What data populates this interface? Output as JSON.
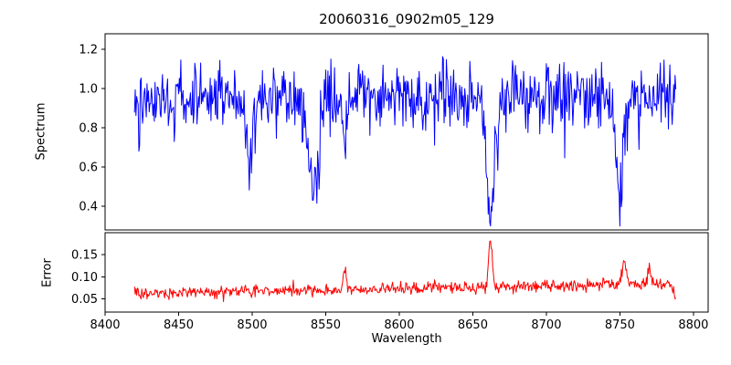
{
  "title": "20060316_0902m05_129",
  "chart_data": {
    "type": "line",
    "title": "20060316_0902m05_129",
    "xlabel": "Wavelength",
    "xlim": [
      8400,
      8810
    ],
    "xticks": [
      8400,
      8450,
      8500,
      8550,
      8600,
      8650,
      8700,
      8750,
      8800
    ],
    "xtick_labels": [
      "8400",
      "8450",
      "8500",
      "8550",
      "8600",
      "8650",
      "8700",
      "8750",
      "8800"
    ],
    "x_data_start": 8420,
    "x_data_end": 8788,
    "x_step": 0.5,
    "noise_seed": 42,
    "grid": false,
    "legend": "none",
    "panels": [
      {
        "name": "spectrum",
        "ylabel": "Spectrum",
        "color": "#0000ff",
        "ylim": [
          0.28,
          1.28
        ],
        "yticks": [
          0.4,
          0.6,
          0.8,
          1.0,
          1.2
        ],
        "ytick_labels": [
          "0.4",
          "0.6",
          "0.8",
          "1.0",
          "1.2"
        ],
        "description": "Noisy normalized stellar spectrum around continuum 1.0 with Ca II triplet absorption dips near 8498, 8542 and 8662 Angstrom plus a dip near 8750",
        "synthesis": {
          "continuum": 0.96,
          "noise_std": 0.085,
          "extra_spike_prob": 0.05,
          "extra_spike_max": 0.28,
          "clamp": [
            0.3,
            1.24
          ],
          "lines": [
            {
              "center": 8498,
              "depth": 0.22,
              "sigma": 3.0
            },
            {
              "center": 8542,
              "depth": 0.47,
              "sigma": 3.5
            },
            {
              "center": 8563,
              "depth": 0.3,
              "sigma": 1.2
            },
            {
              "center": 8662,
              "depth": 0.63,
              "sigma": 3.0
            },
            {
              "center": 8750,
              "depth": 0.48,
              "sigma": 2.5
            }
          ]
        }
      },
      {
        "name": "error",
        "ylabel": "Error",
        "color": "#ff0000",
        "ylim": [
          0.02,
          0.2
        ],
        "yticks": [
          0.05,
          0.1,
          0.15
        ],
        "ytick_labels": [
          "0.05",
          "0.10",
          "0.15"
        ],
        "description": "Error spectrum slowly rising from about 0.06 to 0.09 with a sharp spike to about 0.18 near 8662 and smaller spikes near 8563 and 8750, dropping at the red end",
        "synthesis": {
          "base_start": 0.062,
          "base_end": 0.085,
          "noise_std": 0.007,
          "clamp": [
            0.03,
            0.195
          ],
          "spikes": [
            {
              "center": 8563,
              "amp": 0.045,
              "sigma": 1.0
            },
            {
              "center": 8662,
              "amp": 0.105,
              "sigma": 1.2
            },
            {
              "center": 8753,
              "amp": 0.05,
              "sigma": 1.5
            },
            {
              "center": 8770,
              "amp": 0.035,
              "sigma": 1.0
            }
          ],
          "end_dip": {
            "center": 8789,
            "depth": 0.045,
            "sigma": 2.0
          }
        }
      }
    ]
  }
}
